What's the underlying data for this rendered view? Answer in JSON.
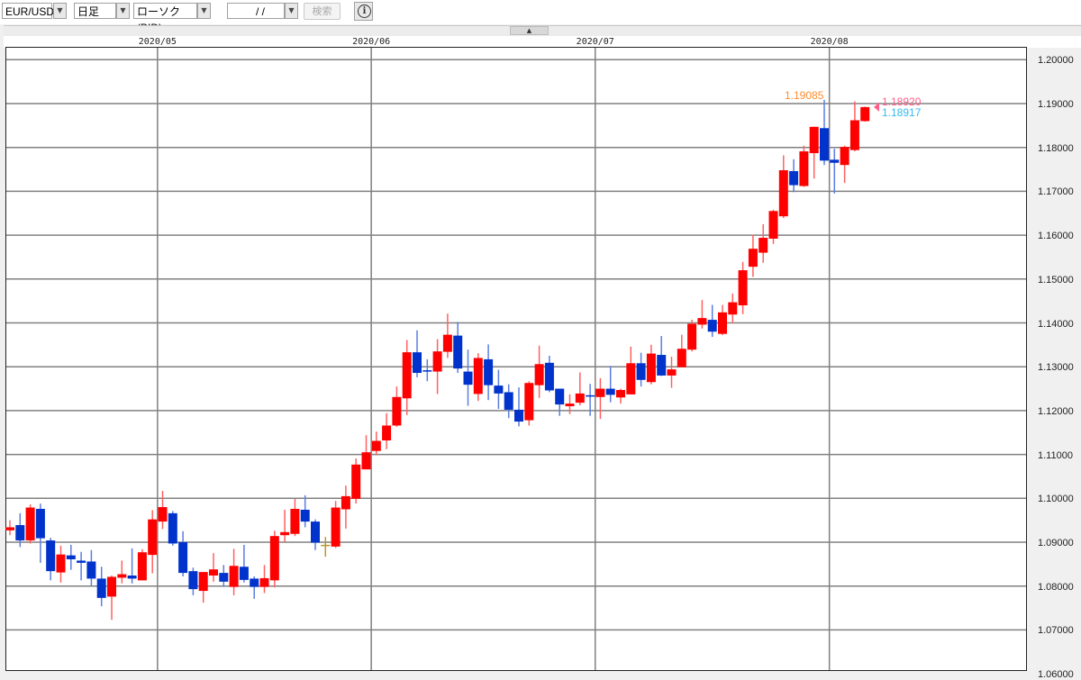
{
  "toolbar": {
    "symbol": "EUR/USD",
    "timeframe": "日足",
    "chart_type": "ローソク(BID)",
    "date": "/  /",
    "search_label": "検索",
    "info_label": "i"
  },
  "colors": {
    "up": "#ff0000",
    "down": "#0033cc",
    "up_wick": "#ff6060",
    "down_wick": "#5a7ee0",
    "doji": "#b8962e",
    "grid": "#808080",
    "high_label": "#ff8c2e",
    "ask_label": "#ff5c8a",
    "bid_label": "#33bbee"
  },
  "labels": {
    "high": "1.19085",
    "ask": "1.18920",
    "bid": "1.18917"
  },
  "chart_data": {
    "type": "candlestick",
    "title": "",
    "y_ticks": [
      "1.20000",
      "1.19000",
      "1.18000",
      "1.17000",
      "1.16000",
      "1.15000",
      "1.14000",
      "1.13000",
      "1.12000",
      "1.11000",
      "1.10000",
      "1.09000",
      "1.08000",
      "1.07000",
      "1.06000"
    ],
    "ylim": [
      1.0602,
      1.2027
    ],
    "grid": true,
    "x_ticks": [
      {
        "label": "2020/05",
        "at_index": 14.5
      },
      {
        "label": "2020/06",
        "at_index": 35.5
      },
      {
        "label": "2020/07",
        "at_index": 57.5
      },
      {
        "label": "2020/08",
        "at_index": 80.5
      }
    ],
    "ohlc_fields": [
      "open",
      "high",
      "low",
      "close"
    ],
    "candles": [
      [
        1.0927,
        1.095,
        1.0916,
        1.0934
      ],
      [
        1.0939,
        1.0966,
        1.0889,
        1.0904
      ],
      [
        1.0904,
        1.0986,
        1.0897,
        1.0979
      ],
      [
        1.0976,
        1.0988,
        1.0853,
        1.0909
      ],
      [
        1.0904,
        1.091,
        1.0813,
        1.0834
      ],
      [
        1.0831,
        1.0892,
        1.0808,
        1.0872
      ],
      [
        1.087,
        1.0894,
        1.0837,
        1.0861
      ],
      [
        1.0858,
        1.0878,
        1.0813,
        1.0853
      ],
      [
        1.0856,
        1.0882,
        1.08,
        1.0817
      ],
      [
        1.0817,
        1.0844,
        1.0754,
        1.0773
      ],
      [
        1.0776,
        1.0824,
        1.0723,
        1.0821
      ],
      [
        1.0819,
        1.0858,
        1.0806,
        1.0827
      ],
      [
        1.0824,
        1.0886,
        1.0806,
        1.0817
      ],
      [
        1.0813,
        1.0884,
        1.0813,
        1.0877
      ],
      [
        1.0871,
        1.0973,
        1.0829,
        1.0952
      ],
      [
        1.0947,
        1.1017,
        1.093,
        1.098
      ],
      [
        1.0966,
        1.0971,
        1.0892,
        1.0897
      ],
      [
        1.09,
        1.0925,
        1.0822,
        1.083
      ],
      [
        1.0834,
        1.0842,
        1.0779,
        1.0793
      ],
      [
        1.0789,
        1.0832,
        1.0762,
        1.0832
      ],
      [
        1.0824,
        1.0875,
        1.081,
        1.0838
      ],
      [
        1.083,
        1.0848,
        1.0798,
        1.081
      ],
      [
        1.0798,
        1.0885,
        1.0779,
        1.0846
      ],
      [
        1.0844,
        1.0894,
        1.0808,
        1.0814
      ],
      [
        1.0817,
        1.0822,
        1.0771,
        1.0798
      ],
      [
        1.0798,
        1.0848,
        1.0784,
        1.0818
      ],
      [
        1.0813,
        1.0926,
        1.0797,
        1.0914
      ],
      [
        1.0916,
        1.0974,
        1.09,
        1.0923
      ],
      [
        1.0919,
        1.0999,
        1.0914,
        1.0976
      ],
      [
        1.0974,
        1.1007,
        1.0934,
        1.0947
      ],
      [
        1.0947,
        1.0952,
        1.0882,
        1.0899
      ],
      [
        1.0894,
        1.0912,
        1.0867,
        1.0894
      ],
      [
        1.089,
        1.0994,
        1.0887,
        1.0979
      ],
      [
        1.0975,
        1.1029,
        1.0931,
        1.1005
      ],
      [
        1.0999,
        1.1091,
        1.0988,
        1.1077
      ],
      [
        1.1066,
        1.1144,
        1.1066,
        1.1105
      ],
      [
        1.1108,
        1.1152,
        1.1098,
        1.1131
      ],
      [
        1.1132,
        1.1194,
        1.1112,
        1.1166
      ],
      [
        1.1166,
        1.1255,
        1.1163,
        1.1231
      ],
      [
        1.1228,
        1.1361,
        1.119,
        1.1333
      ],
      [
        1.1333,
        1.1383,
        1.1276,
        1.1286
      ],
      [
        1.1292,
        1.1317,
        1.1267,
        1.129
      ],
      [
        1.1289,
        1.1363,
        1.1238,
        1.1335
      ],
      [
        1.1334,
        1.1421,
        1.132,
        1.1373
      ],
      [
        1.1371,
        1.1402,
        1.1286,
        1.1296
      ],
      [
        1.1289,
        1.1339,
        1.1211,
        1.1259
      ],
      [
        1.1238,
        1.1331,
        1.1222,
        1.132
      ],
      [
        1.1317,
        1.1351,
        1.1224,
        1.1258
      ],
      [
        1.1257,
        1.1293,
        1.1204,
        1.1239
      ],
      [
        1.1242,
        1.126,
        1.1183,
        1.1202
      ],
      [
        1.1202,
        1.1253,
        1.1164,
        1.1175
      ],
      [
        1.1178,
        1.1267,
        1.1166,
        1.1263
      ],
      [
        1.1258,
        1.1348,
        1.1229,
        1.1306
      ],
      [
        1.1309,
        1.1325,
        1.1242,
        1.1246
      ],
      [
        1.125,
        1.125,
        1.1188,
        1.1214
      ],
      [
        1.121,
        1.1237,
        1.1192,
        1.1216
      ],
      [
        1.1218,
        1.1287,
        1.1212,
        1.1239
      ],
      [
        1.1235,
        1.1261,
        1.1188,
        1.1232
      ],
      [
        1.1231,
        1.1274,
        1.1181,
        1.125
      ],
      [
        1.125,
        1.1302,
        1.1219,
        1.1236
      ],
      [
        1.123,
        1.125,
        1.1216,
        1.1247
      ],
      [
        1.1237,
        1.1346,
        1.1237,
        1.1308
      ],
      [
        1.1308,
        1.1332,
        1.1255,
        1.127
      ],
      [
        1.1265,
        1.135,
        1.126,
        1.133
      ],
      [
        1.1327,
        1.137,
        1.1279,
        1.128
      ],
      [
        1.128,
        1.1323,
        1.1252,
        1.1294
      ],
      [
        1.1299,
        1.1373,
        1.1299,
        1.1341
      ],
      [
        1.1339,
        1.1407,
        1.1335,
        1.1398
      ],
      [
        1.1396,
        1.1452,
        1.1387,
        1.1411
      ],
      [
        1.1407,
        1.1441,
        1.1368,
        1.138
      ],
      [
        1.1375,
        1.1441,
        1.1372,
        1.1424
      ],
      [
        1.1419,
        1.1467,
        1.1399,
        1.1447
      ],
      [
        1.144,
        1.1539,
        1.142,
        1.152
      ],
      [
        1.1528,
        1.1601,
        1.1505,
        1.1569
      ],
      [
        1.156,
        1.1625,
        1.1537,
        1.1594
      ],
      [
        1.1592,
        1.1658,
        1.158,
        1.1655
      ],
      [
        1.1643,
        1.1782,
        1.1639,
        1.1748
      ],
      [
        1.1746,
        1.1773,
        1.1698,
        1.1714
      ],
      [
        1.1712,
        1.1804,
        1.171,
        1.1791
      ],
      [
        1.1787,
        1.1847,
        1.1729,
        1.1847
      ],
      [
        1.1844,
        1.19085,
        1.176,
        1.177
      ],
      [
        1.1772,
        1.1797,
        1.1695,
        1.1765
      ],
      [
        1.176,
        1.1804,
        1.1719,
        1.1801
      ],
      [
        1.1794,
        1.1905,
        1.1791,
        1.1862
      ],
      [
        1.186,
        1.1893,
        1.1859,
        1.1892
      ]
    ],
    "doji_indices": [
      31
    ],
    "high_marker_index": 80,
    "current_price": 1.1892
  }
}
